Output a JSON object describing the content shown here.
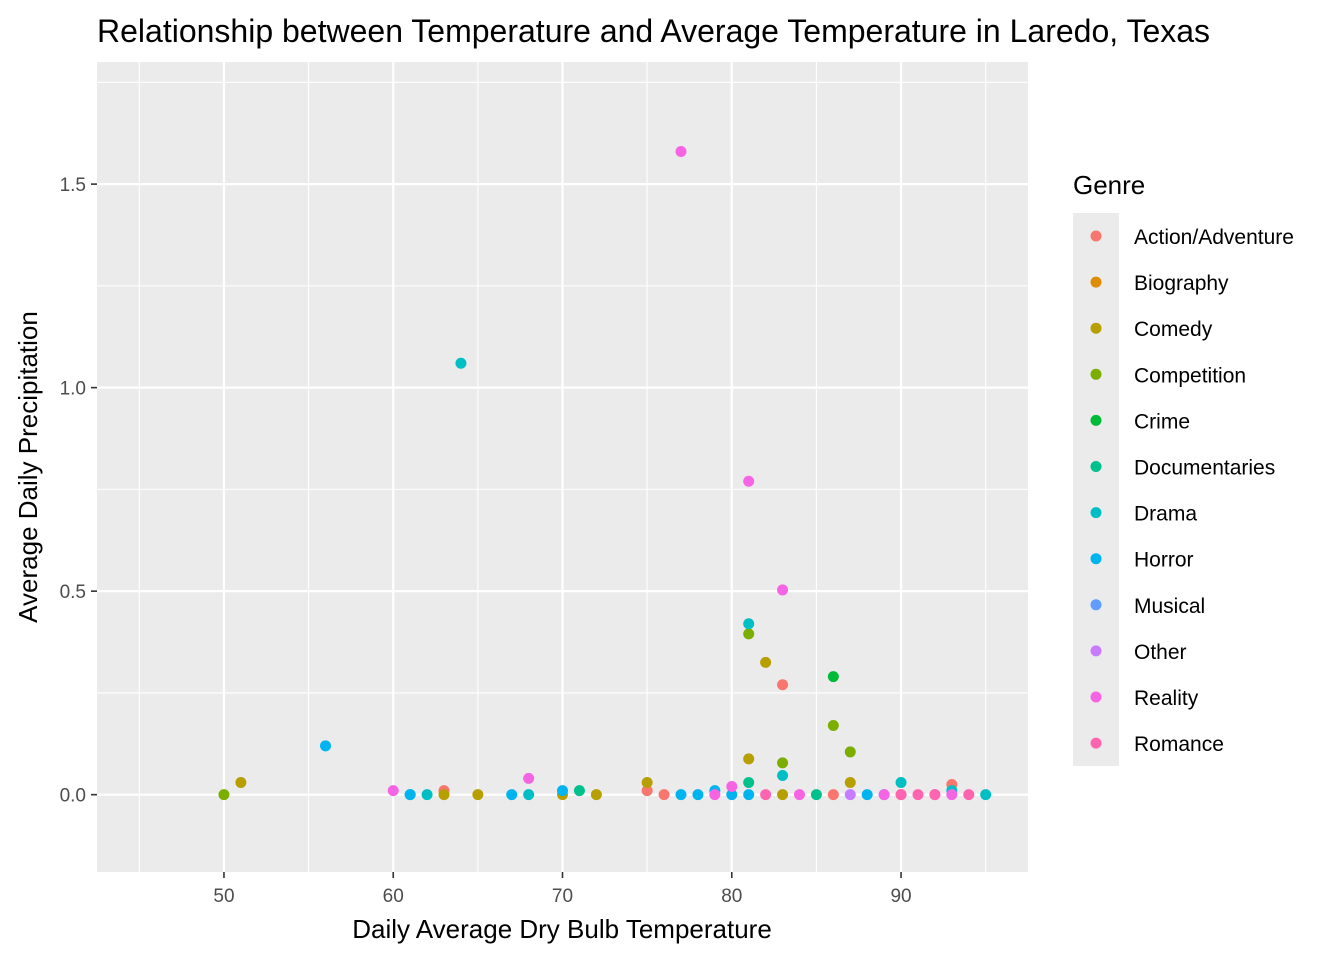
{
  "chart_data": {
    "type": "scatter",
    "title": "Relationship between Temperature and Average Temperature in Laredo, Texas",
    "xlabel": "Daily Average Dry Bulb Temperature",
    "ylabel": "Average Daily Precipitation",
    "xlim": [
      42.5,
      97.5
    ],
    "ylim": [
      -0.19,
      1.8
    ],
    "x_ticks": [
      50,
      60,
      70,
      80,
      90
    ],
    "y_ticks": [
      0.0,
      0.5,
      1.0,
      1.5
    ],
    "x_tick_labels": [
      "50",
      "60",
      "70",
      "80",
      "90"
    ],
    "y_tick_labels": [
      "0.0",
      "0.5",
      "1.0",
      "1.5"
    ],
    "grid": true,
    "legend_position": "right",
    "legend_title": "Genre",
    "series": [
      {
        "name": "Action/Adventure",
        "color": "#F8766D",
        "points": [
          [
            63,
            0.01
          ],
          [
            75,
            0.01
          ],
          [
            76,
            0
          ],
          [
            83,
            0.27
          ],
          [
            86,
            0
          ],
          [
            90,
            0
          ],
          [
            93,
            0.025
          ]
        ]
      },
      {
        "name": "Biography",
        "color": "#DE8C00",
        "points": []
      },
      {
        "name": "Comedy",
        "color": "#B79F00",
        "points": [
          [
            51,
            0.03
          ],
          [
            63,
            0
          ],
          [
            65,
            0
          ],
          [
            70,
            0
          ],
          [
            72,
            0
          ],
          [
            75,
            0.03
          ],
          [
            81,
            0.088
          ],
          [
            82,
            0.325
          ],
          [
            83,
            0
          ],
          [
            87,
            0.03
          ]
        ]
      },
      {
        "name": "Competition",
        "color": "#7CAE00",
        "points": [
          [
            50,
            0
          ],
          [
            81,
            0.395
          ],
          [
            83,
            0.078
          ],
          [
            86,
            0.17
          ],
          [
            87,
            0.105
          ]
        ]
      },
      {
        "name": "Crime",
        "color": "#00BA38",
        "points": [
          [
            86,
            0.29
          ]
        ]
      },
      {
        "name": "Documentaries",
        "color": "#00C08B",
        "points": [
          [
            71,
            0.01
          ],
          [
            81,
            0.03
          ],
          [
            85,
            0
          ]
        ]
      },
      {
        "name": "Drama",
        "color": "#00BFC4",
        "points": [
          [
            61,
            0
          ],
          [
            62,
            0
          ],
          [
            64,
            1.06
          ],
          [
            68,
            0
          ],
          [
            81,
            0.42
          ],
          [
            83,
            0.047
          ],
          [
            90,
            0.03
          ],
          [
            93,
            0.01
          ],
          [
            95,
            0
          ]
        ]
      },
      {
        "name": "Horror",
        "color": "#00B4F0",
        "points": [
          [
            56,
            0.12
          ],
          [
            61,
            0
          ],
          [
            67,
            0
          ],
          [
            70,
            0.01
          ],
          [
            77,
            0
          ],
          [
            78,
            0
          ],
          [
            79,
            0.01
          ],
          [
            80,
            0
          ],
          [
            81,
            0
          ],
          [
            88,
            0
          ],
          [
            89,
            0
          ]
        ]
      },
      {
        "name": "Musical",
        "color": "#619CFF",
        "points": []
      },
      {
        "name": "Other",
        "color": "#C77CFF",
        "points": [
          [
            87,
            0
          ]
        ]
      },
      {
        "name": "Reality",
        "color": "#F564E3",
        "points": [
          [
            60,
            0.01
          ],
          [
            68,
            0.04
          ],
          [
            77,
            1.58
          ],
          [
            79,
            0
          ],
          [
            80,
            0.02
          ],
          [
            81,
            0.77
          ],
          [
            83,
            0.503
          ],
          [
            84,
            0
          ],
          [
            89,
            0
          ],
          [
            92,
            0
          ],
          [
            93,
            0
          ]
        ]
      },
      {
        "name": "Romance",
        "color": "#FF64B0",
        "points": [
          [
            82,
            0
          ],
          [
            90,
            0
          ],
          [
            91,
            0
          ],
          [
            92,
            0
          ],
          [
            94,
            0
          ]
        ]
      }
    ]
  }
}
